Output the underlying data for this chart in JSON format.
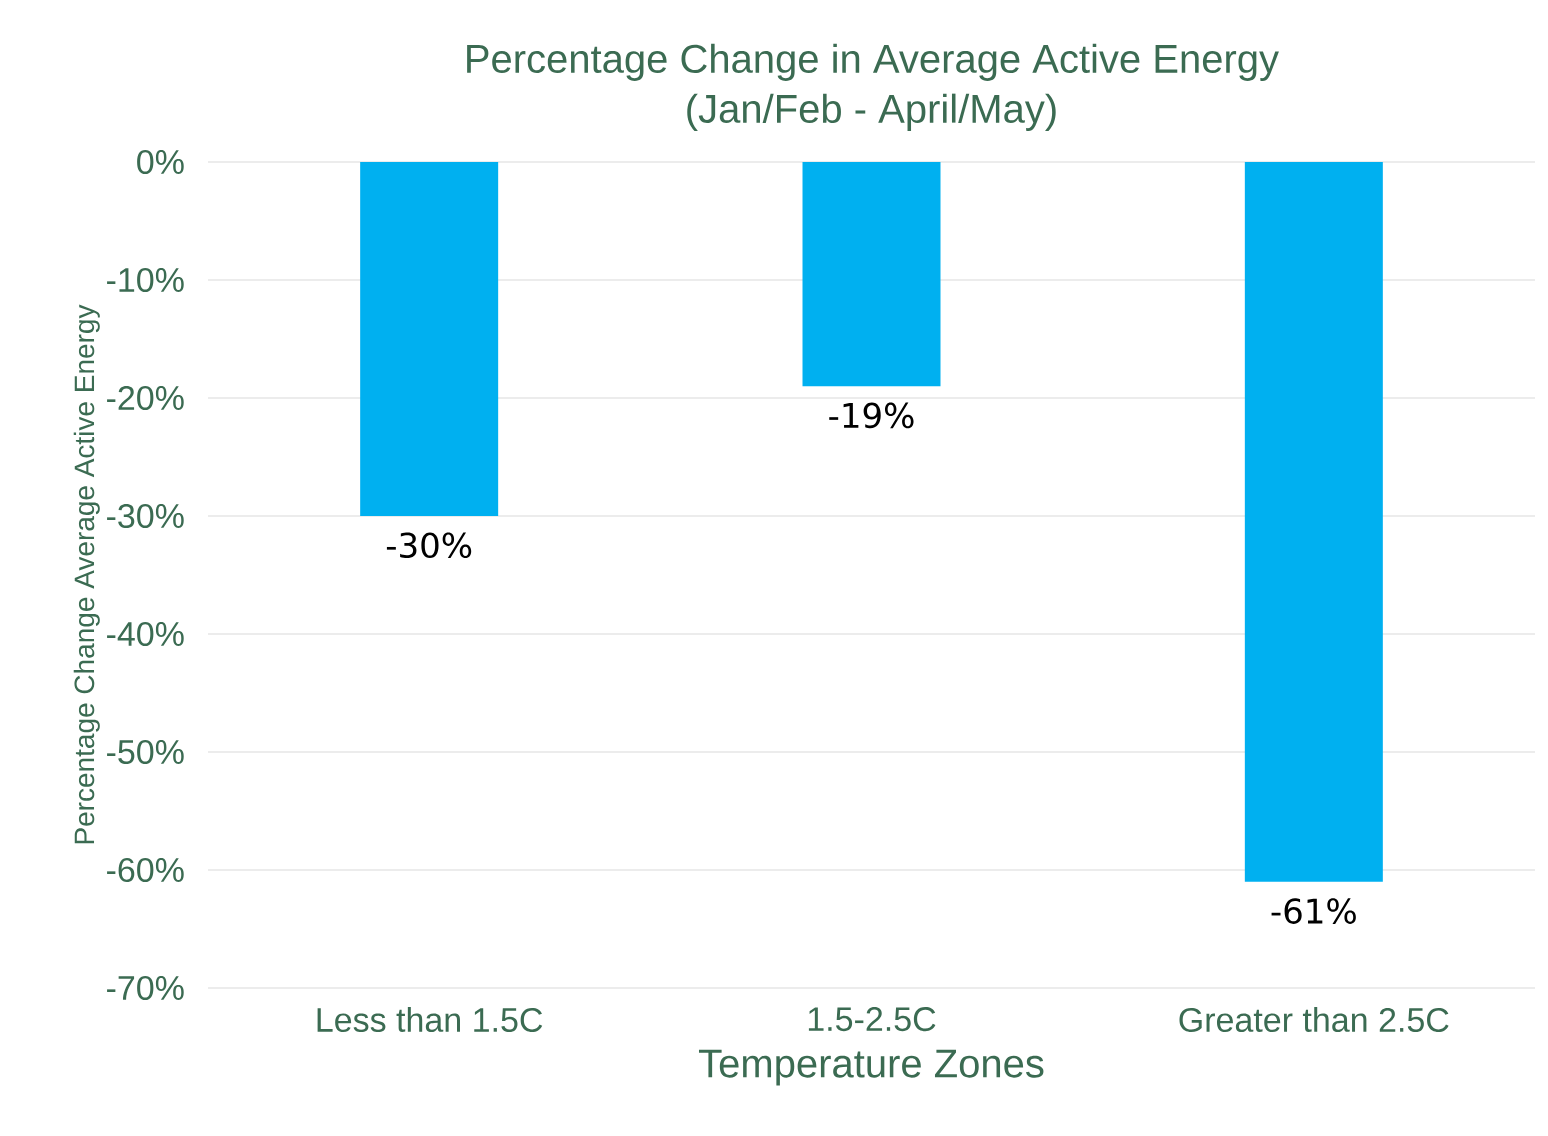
{
  "chart_data": {
    "type": "bar",
    "title": "Percentage Change in Average Active Energy",
    "subtitle": "(Jan/Feb - April/May)",
    "xlabel": "Temperature Zones",
    "ylabel": "Percentage Change Average Active Energy",
    "categories": [
      "Less than 1.5C",
      "1.5-2.5C",
      "Greater than 2.5C"
    ],
    "values": [
      -30,
      -19,
      -61
    ],
    "value_labels": [
      "-30%",
      "-19%",
      "-61%"
    ],
    "color": "#00b0f0",
    "ylim": [
      -70,
      0
    ],
    "yticks": [
      {
        "value": -70,
        "label": "-70%"
      },
      {
        "value": -60,
        "label": "-60%"
      },
      {
        "value": -50,
        "label": "-50%"
      },
      {
        "value": -40,
        "label": "-40%"
      },
      {
        "value": -30,
        "label": "-30%"
      },
      {
        "value": -20,
        "label": "-20%"
      },
      {
        "value": -10,
        "label": "-10%"
      },
      {
        "value": 0,
        "label": "0%"
      }
    ],
    "grid": "y"
  }
}
